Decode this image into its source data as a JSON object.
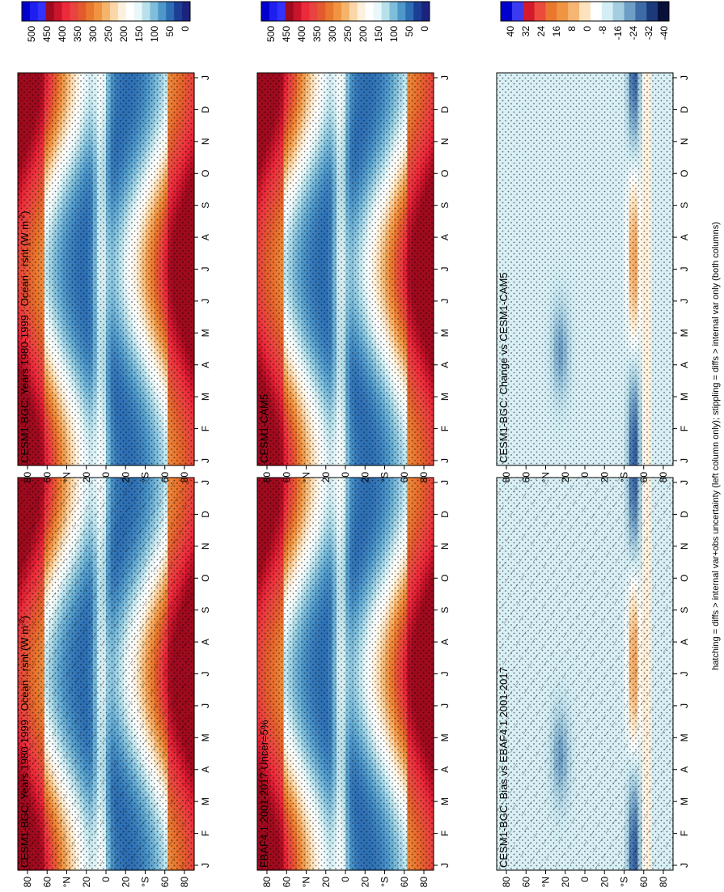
{
  "figure_caption": "hatching = diffs > internal var+obs uncertainty (left column only); stippling = diffs > internal var only (both columns)",
  "colors": {
    "abs_scale": [
      "#1a237e",
      "#1c3f95",
      "#2c6db3",
      "#4d97c9",
      "#7fbedb",
      "#b7e0eb",
      "#e9f7f9",
      "#ffffff",
      "#fdf0dc",
      "#fbd7a8",
      "#f5b36c",
      "#ef9443",
      "#e9782e",
      "#e35a2e",
      "#e9433f",
      "#ec2a3a",
      "#c9142b",
      "#9e0a1e",
      "#3232ff",
      "#1e1ef0",
      "#0000cc"
    ],
    "diff_scale": [
      "#08103a",
      "#1c3a7a",
      "#3d6ba8",
      "#6e9ec5",
      "#a4cde0",
      "#d4eef5",
      "#ffffff",
      "#fde3bd",
      "#f5b573",
      "#ef9443",
      "#e9782e",
      "#ec4a3c",
      "#d41a2c",
      "#3a3af0",
      "#0000cc"
    ]
  },
  "chart_data": [
    {
      "id": "p1",
      "type": "heatmap",
      "title": "CESM1-BGC: Years 1980-1999 : Ocean : rsnt (W m",
      "title_sup": "-2",
      "title_end": ")",
      "xlabel": "",
      "ylabel": "",
      "x": [
        "J",
        "F",
        "M",
        "A",
        "M",
        "J",
        "J",
        "A",
        "S",
        "O",
        "N",
        "D",
        "J"
      ],
      "x_range": [
        0,
        12
      ],
      "y_ticks": [
        "80",
        "60",
        "°N",
        "20",
        "0",
        "20",
        "°S",
        "60",
        "80"
      ],
      "y_range": [
        90,
        -90
      ],
      "colorbar_labels": [
        "500",
        "450",
        "400",
        "350",
        "300",
        "250",
        "200",
        "150",
        "100",
        "50",
        "0"
      ],
      "hatching": true,
      "stippling": true
    },
    {
      "id": "p2",
      "type": "heatmap",
      "title": "CESM1-BGC: Years 1980-1999 : Ocean : rsnt (W m",
      "title_sup": "-2",
      "title_end": ")",
      "xlabel": "",
      "ylabel": "",
      "x": [
        "J",
        "F",
        "M",
        "A",
        "M",
        "J",
        "J",
        "A",
        "S",
        "O",
        "N",
        "D",
        "J"
      ],
      "x_range": [
        0,
        12
      ],
      "y_ticks": [
        "80",
        "60",
        "°N",
        "20",
        "0",
        "20",
        "°S",
        "60",
        "80"
      ],
      "y_range": [
        90,
        -90
      ],
      "colorbar_labels": [
        "500",
        "450",
        "400",
        "350",
        "300",
        "250",
        "200",
        "150",
        "100",
        "50",
        "0"
      ],
      "hatching": false,
      "stippling": true
    },
    {
      "id": "p3",
      "type": "heatmap",
      "title": "EBAF4.1 2001-2017 Uncer=5%",
      "xlabel": "",
      "ylabel": "",
      "x": [
        "J",
        "F",
        "M",
        "A",
        "M",
        "J",
        "J",
        "A",
        "S",
        "O",
        "N",
        "D",
        "J"
      ],
      "x_range": [
        0,
        12
      ],
      "y_ticks": [
        "80",
        "60",
        "°N",
        "20",
        "0",
        "20",
        "°S",
        "60",
        "80"
      ],
      "y_range": [
        90,
        -90
      ],
      "colorbar_labels": [
        "500",
        "450",
        "400",
        "350",
        "300",
        "250",
        "200",
        "150",
        "100",
        "50",
        "0"
      ],
      "hatching": false,
      "stippling": true
    },
    {
      "id": "p4",
      "type": "heatmap",
      "title": "CESM1-CAM5",
      "xlabel": "",
      "ylabel": "",
      "x": [
        "J",
        "F",
        "M",
        "A",
        "M",
        "J",
        "J",
        "A",
        "S",
        "O",
        "N",
        "D",
        "J"
      ],
      "x_range": [
        0,
        12
      ],
      "y_ticks": [
        "80",
        "60",
        "°N",
        "20",
        "0",
        "20",
        "°S",
        "60",
        "80"
      ],
      "y_range": [
        90,
        -90
      ],
      "colorbar_labels": [
        "500",
        "450",
        "400",
        "350",
        "300",
        "250",
        "200",
        "150",
        "100",
        "50",
        "0"
      ],
      "hatching": false,
      "stippling": true
    },
    {
      "id": "p5",
      "type": "heatmap",
      "title": "CESM1-BGC: Bias vs EBAF4.1 2001-2017",
      "xlabel": "",
      "ylabel": "",
      "x": [
        "J",
        "F",
        "M",
        "A",
        "M",
        "J",
        "J",
        "A",
        "S",
        "O",
        "N",
        "D",
        "J"
      ],
      "x_range": [
        0,
        12
      ],
      "y_ticks": [
        "80",
        "60",
        "°N",
        "20",
        "0",
        "20",
        "°S",
        "60",
        "80"
      ],
      "y_range": [
        90,
        -90
      ],
      "colorbar_labels": [
        "40",
        "32",
        "24",
        "16",
        "8",
        "0",
        "-8",
        "-16",
        "-24",
        "-32",
        "-40"
      ],
      "hatching": true,
      "stippling": true
    },
    {
      "id": "p6",
      "type": "heatmap",
      "title": "CESM1-BGC: Change vs CESM1-CAM5",
      "xlabel": "",
      "ylabel": "",
      "x": [
        "J",
        "F",
        "M",
        "A",
        "M",
        "J",
        "J",
        "A",
        "S",
        "O",
        "N",
        "D",
        "J"
      ],
      "x_range": [
        0,
        12
      ],
      "y_ticks": [
        "80",
        "60",
        "°N",
        "20",
        "0",
        "20",
        "°S",
        "60",
        "80"
      ],
      "y_range": [
        90,
        -90
      ],
      "colorbar_labels": [
        "40",
        "32",
        "24",
        "16",
        "8",
        "0",
        "-8",
        "-16",
        "-24",
        "-32",
        "-40"
      ],
      "hatching": false,
      "stippling": true
    }
  ]
}
